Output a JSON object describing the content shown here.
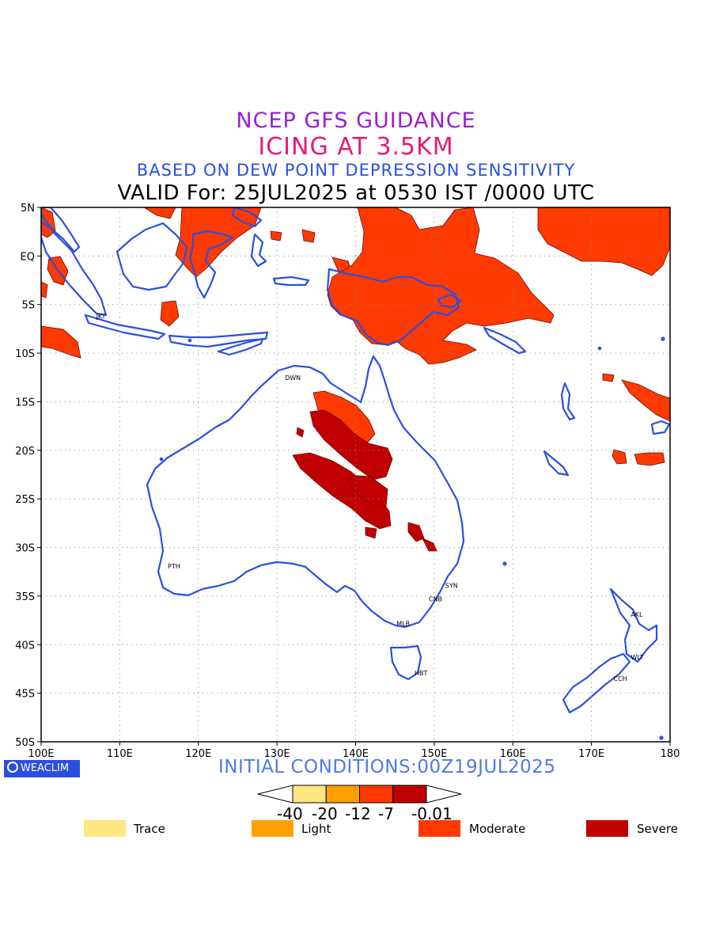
{
  "titles": {
    "line1": "NCEP GFS GUIDANCE",
    "line2": "ICING AT 3.5KM",
    "line3": "BASED ON DEW POINT DEPRESSION SENSITIVITY",
    "line4": "VALID For: 25JUL2025 at 0530 IST /0000 UTC"
  },
  "axes": {
    "lon_labels": [
      "100E",
      "110E",
      "120E",
      "130E",
      "140E",
      "150E",
      "160E",
      "170E",
      "180"
    ],
    "lat_labels": [
      "5N",
      "EQ",
      "5S",
      "10S",
      "15S",
      "20S",
      "25S",
      "30S",
      "35S",
      "40S",
      "45S",
      "50S"
    ],
    "lon_range": [
      100,
      180
    ],
    "lat_range": [
      5,
      -50
    ],
    "grid": true
  },
  "cities": [
    {
      "code": "JKT",
      "lon": 106.8,
      "lat": -6.2
    },
    {
      "code": "DWN",
      "lon": 130.8,
      "lat": -12.5
    },
    {
      "code": "PTH",
      "lon": 115.9,
      "lat": -31.9
    },
    {
      "code": "SYN",
      "lon": 151.2,
      "lat": -33.9
    },
    {
      "code": "CNB",
      "lon": 149.1,
      "lat": -35.3
    },
    {
      "code": "MLB",
      "lon": 145.0,
      "lat": -37.8
    },
    {
      "code": "HBT",
      "lon": 147.3,
      "lat": -42.9
    },
    {
      "code": "AKL",
      "lon": 174.8,
      "lat": -36.9
    },
    {
      "code": "WLT",
      "lon": 174.8,
      "lat": -41.3
    },
    {
      "code": "CCH",
      "lon": 172.6,
      "lat": -43.5
    }
  ],
  "footer": {
    "logo": "WEACLIM",
    "initial": "INITIAL CONDITIONS:00Z19JUL2025"
  },
  "colorbar": {
    "ticks": [
      "-40",
      "-20",
      "-12",
      "-7",
      "-0.01"
    ],
    "colors": [
      "#ffe680",
      "#ffa000",
      "#ff3a00",
      "#c00000"
    ]
  },
  "legend": [
    {
      "label": "Trace",
      "color": "#ffe680"
    },
    {
      "label": "Light",
      "color": "#ffa000"
    },
    {
      "label": "Moderate",
      "color": "#ff3a00"
    },
    {
      "label": "Severe",
      "color": "#c00000"
    }
  ],
  "colors": {
    "coast": "#2a4fe0",
    "moderate": "#ff3a00",
    "severe": "#c00000"
  }
}
